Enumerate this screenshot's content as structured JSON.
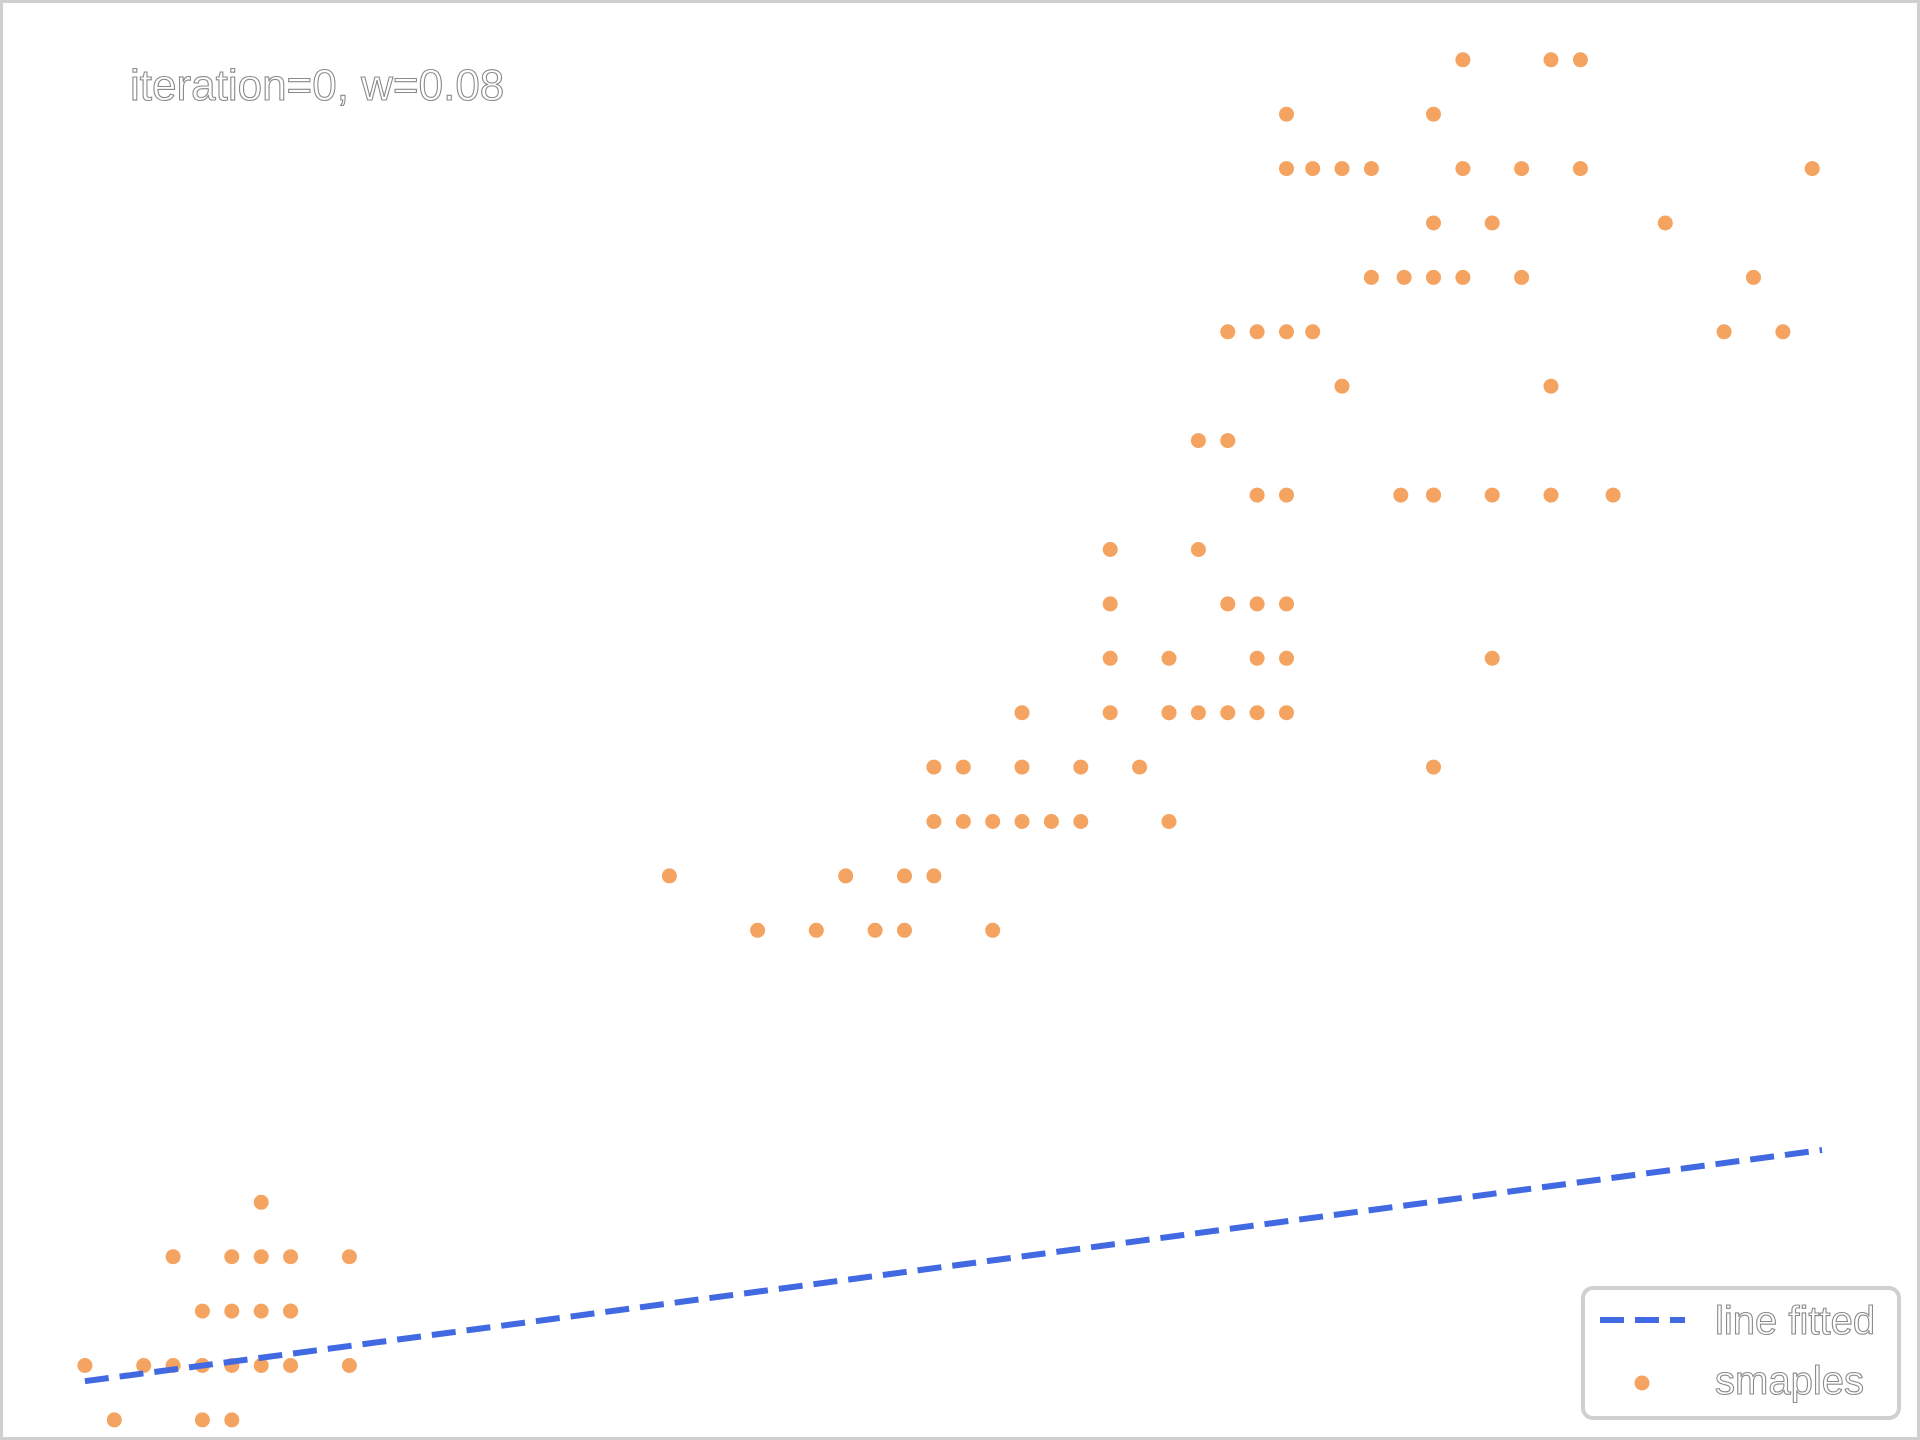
{
  "chart_data": {
    "type": "scatter",
    "title": "",
    "xlabel": "",
    "ylabel": "",
    "xlim": [
      0,
      58.8
    ],
    "ylim": [
      -0.87,
      25.6
    ],
    "grid": false,
    "annotation": "iteration=0, w=0.08",
    "legend": {
      "placement": "bottom-right",
      "entries": [
        "line fitted",
        "smaples"
      ]
    },
    "colors": {
      "samples": "#f4a460",
      "line": "#4169e1",
      "frame": "#d0d0d0"
    },
    "series": [
      {
        "name": "line fitted",
        "kind": "line",
        "style": "dashed",
        "x": [
          2.6,
          55.8
        ],
        "y": [
          0.21,
          4.46
        ]
      },
      {
        "name": "smaples",
        "kind": "scatter",
        "x": [
          2.6,
          3.5,
          4.4,
          5.3,
          6.2,
          7.1,
          8.0,
          8.9,
          10.7,
          6.2,
          7.1,
          8.0,
          8.9,
          5.3,
          7.1,
          8.0,
          8.9,
          10.7,
          8.9,
          8.0,
          6.2,
          7.1,
          20.5,
          23.2,
          25.0,
          26.8,
          27.7,
          28.6,
          30.4,
          25.9,
          27.7,
          28.6,
          29.5,
          30.4,
          31.3,
          32.2,
          33.1,
          35.8,
          28.6,
          29.5,
          31.3,
          33.1,
          34.9,
          35.8,
          36.7,
          31.3,
          34.0,
          35.8,
          37.6,
          38.5,
          39.4,
          34.0,
          35.8,
          34.0,
          38.5,
          34.0,
          36.7,
          37.6,
          38.5,
          39.4,
          43.9,
          45.7,
          39.4,
          38.5,
          43.9,
          36.7,
          37.6,
          39.4,
          42.9,
          43.9,
          45.7,
          47.5,
          49.4,
          41.1,
          47.5,
          37.6,
          38.5,
          39.4,
          40.2,
          42.0,
          43.0,
          43.9,
          44.8,
          46.6,
          52.8,
          54.6,
          51.0,
          53.7,
          43.9,
          45.7,
          39.4,
          40.2,
          41.1,
          42.0,
          44.8,
          46.6,
          48.4,
          55.5,
          39.4,
          43.9,
          44.8,
          47.5,
          48.4
        ],
        "y": [
          0.5,
          -0.5,
          0.5,
          0.5,
          0.5,
          0.5,
          0.5,
          0.5,
          0.5,
          1.5,
          1.5,
          1.5,
          1.5,
          2.5,
          2.5,
          2.5,
          2.5,
          2.5,
          1.5,
          3.5,
          -0.5,
          -0.5,
          9.5,
          8.5,
          8.5,
          8.5,
          8.5,
          9.5,
          8.5,
          9.5,
          9.5,
          10.5,
          10.5,
          10.5,
          10.5,
          10.5,
          10.5,
          10.5,
          11.5,
          11.5,
          11.5,
          11.5,
          11.5,
          12.5,
          12.5,
          12.5,
          12.5,
          12.5,
          12.5,
          12.5,
          12.5,
          13.5,
          13.5,
          14.5,
          13.5,
          15.5,
          15.5,
          14.5,
          14.5,
          14.5,
          11.5,
          13.5,
          13.5,
          16.5,
          16.5,
          17.5,
          17.5,
          16.5,
          16.5,
          16.5,
          16.5,
          16.5,
          16.5,
          18.5,
          18.5,
          19.5,
          19.5,
          19.5,
          19.5,
          20.5,
          20.5,
          20.5,
          20.5,
          20.5,
          19.5,
          19.5,
          21.5,
          20.5,
          21.5,
          21.5,
          22.5,
          22.5,
          22.5,
          22.5,
          22.5,
          22.5,
          22.5,
          22.5,
          23.5,
          23.5,
          24.5,
          24.5,
          24.5
        ]
      }
    ]
  }
}
